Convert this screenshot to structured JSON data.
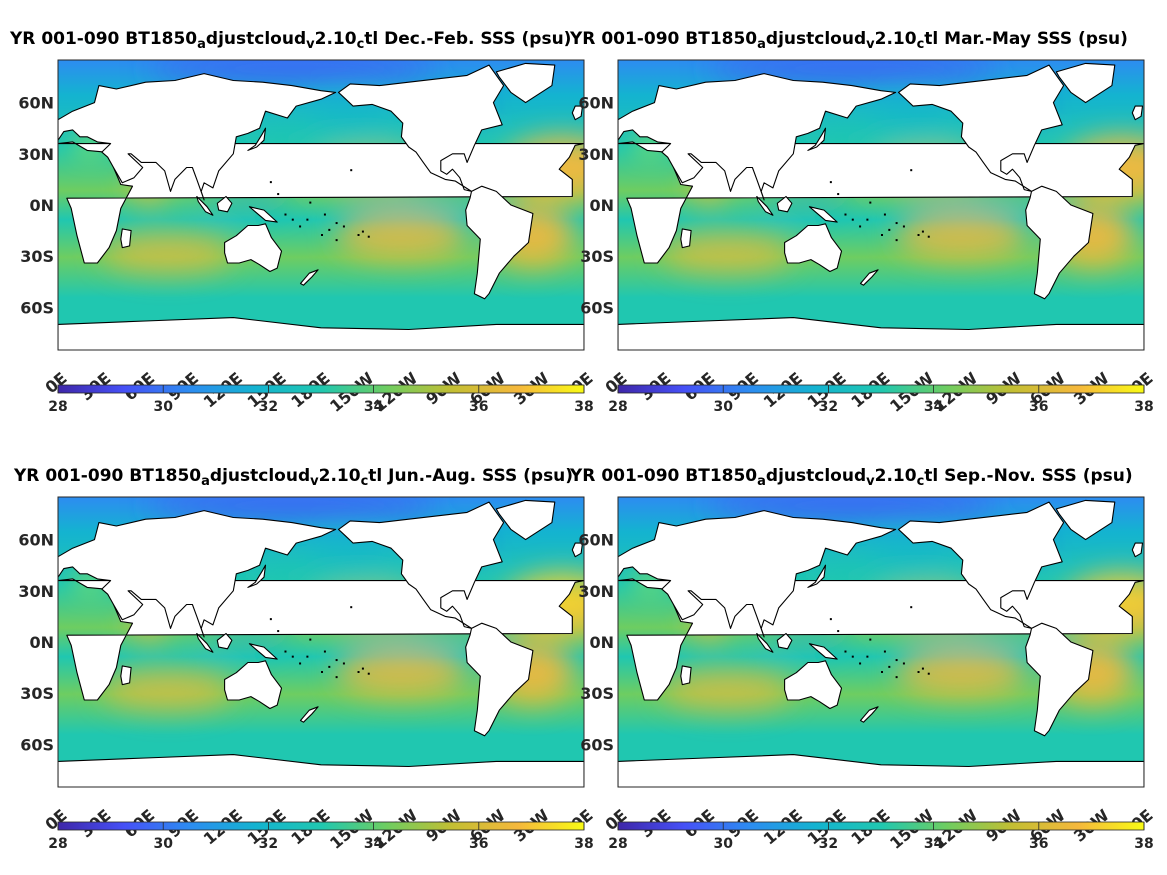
{
  "figure": {
    "colormap": [
      "#3e26a8",
      "#4650f6",
      "#2d8cf1",
      "#14b3d0",
      "#20c7b0",
      "#6ecd61",
      "#c3be33",
      "#f5b83c",
      "#f9fb15"
    ],
    "land_color": "#ffffff",
    "coast_color": "#000000"
  },
  "panels": [
    {
      "title_parts": [
        "YR 001-090 BT1850",
        "a",
        "djustcloud",
        "v",
        "2.10",
        "c",
        "tl Dec.-Feb. SSS (psu)"
      ],
      "lat_labels": [
        "60N",
        "30N",
        "0N",
        "30S",
        "60S"
      ],
      "lon_labels": [
        "0E",
        "30E",
        "60E",
        "90E",
        "120E",
        "150E",
        "180E",
        "150W",
        "120W",
        "90W",
        "60W",
        "30W",
        "0E"
      ],
      "colorbar": {
        "ticks": [
          "28",
          "30",
          "32",
          "34",
          "36",
          "38"
        ],
        "range": [
          28,
          38
        ]
      },
      "season": "DJF"
    },
    {
      "title_parts": [
        "YR 001-090 BT1850",
        "a",
        "djustcloud",
        "v",
        "2.10",
        "c",
        "tl Mar.-May SSS (psu)"
      ],
      "lat_labels": [
        "60N",
        "30N",
        "0N",
        "30S",
        "60S"
      ],
      "lon_labels": [
        "0E",
        "30E",
        "60E",
        "90E",
        "120E",
        "150E",
        "180E",
        "150W",
        "120W",
        "90W",
        "60W",
        "30W",
        "0E"
      ],
      "colorbar": {
        "ticks": [
          "28",
          "30",
          "32",
          "34",
          "36",
          "38"
        ],
        "range": [
          28,
          38
        ]
      },
      "season": "MAM"
    },
    {
      "title_parts": [
        "YR 001-090 BT1850",
        "a",
        "djustcloud",
        "v",
        "2.10",
        "c",
        "tl Jun.-Aug. SSS (psu)"
      ],
      "lat_labels": [
        "60N",
        "30N",
        "0N",
        "30S",
        "60S"
      ],
      "lon_labels": [
        "0E",
        "30E",
        "60E",
        "90E",
        "120E",
        "150E",
        "180E",
        "150W",
        "120W",
        "90W",
        "60W",
        "30W",
        "0E"
      ],
      "colorbar": {
        "ticks": [
          "28",
          "30",
          "32",
          "34",
          "36",
          "38"
        ],
        "range": [
          28,
          38
        ]
      },
      "season": "JJA"
    },
    {
      "title_parts": [
        "YR 001-090 BT1850",
        "a",
        "djustcloud",
        "v",
        "2.10",
        "c",
        "tl Sep.-Nov. SSS (psu)"
      ],
      "lat_labels": [
        "60N",
        "30N",
        "0N",
        "30S",
        "60S"
      ],
      "lon_labels": [
        "0E",
        "30E",
        "60E",
        "90E",
        "120E",
        "150E",
        "180E",
        "150W",
        "120W",
        "90W",
        "60W",
        "30W",
        "0E"
      ],
      "colorbar": {
        "ticks": [
          "28",
          "30",
          "32",
          "34",
          "36",
          "38"
        ],
        "range": [
          28,
          38
        ]
      },
      "season": "SON"
    }
  ]
}
